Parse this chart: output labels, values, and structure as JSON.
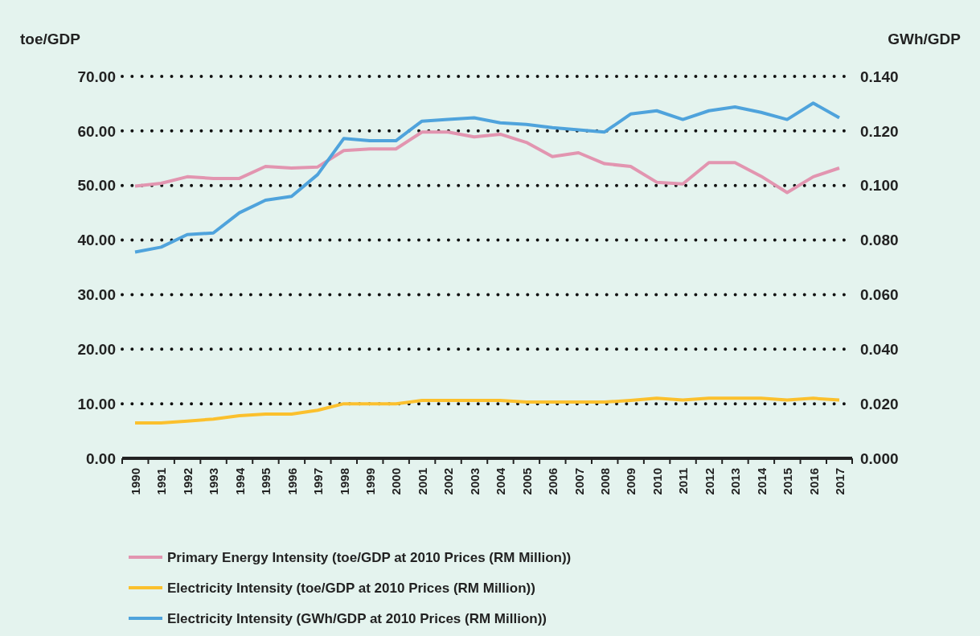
{
  "chart_data": {
    "type": "line",
    "ylabel": "toe/GDP",
    "y2label": "GWh/GDP",
    "categories": [
      "1990",
      "1991",
      "1992",
      "1993",
      "1994",
      "1995",
      "1996",
      "1997",
      "1998",
      "1999",
      "2000",
      "2001",
      "2002",
      "2003",
      "2004",
      "2005",
      "2006",
      "2007",
      "2008",
      "2009",
      "2010",
      "2011",
      "2012",
      "2013",
      "2014",
      "2015",
      "2016",
      "2017"
    ],
    "series": [
      {
        "name": "Primary Energy Intensity (toe/GDP at 2010 Prices (RM Million))",
        "color": "#e295b0",
        "values": [
          49.9,
          50.4,
          51.6,
          51.3,
          51.3,
          53.5,
          53.2,
          53.4,
          56.4,
          56.7,
          56.7,
          59.8,
          59.8,
          58.9,
          59.4,
          57.9,
          55.3,
          56.0,
          54.0,
          53.5,
          50.6,
          50.3,
          54.2,
          54.2,
          51.7,
          48.7,
          51.6,
          53.2
        ]
      },
      {
        "name": "Electricity Intensity (toe/GDP at 2010 Prices (RM Million))",
        "color": "#fbc02d",
        "values": [
          6.5,
          6.5,
          6.8,
          7.2,
          7.8,
          8.1,
          8.1,
          8.8,
          10.0,
          10.0,
          10.0,
          10.6,
          10.6,
          10.6,
          10.6,
          10.3,
          10.3,
          10.3,
          10.3,
          10.6,
          11.0,
          10.7,
          11.0,
          11.0,
          11.0,
          10.7,
          11.0,
          10.7
        ]
      },
      {
        "name": "Electricity Intensity (GWh/GDP at 2010 Prices (RM Million))",
        "color": "#4fa3dc",
        "axis": "y2",
        "values": [
          0.0756,
          0.0774,
          0.082,
          0.0826,
          0.09,
          0.0946,
          0.096,
          0.104,
          0.1172,
          0.1164,
          0.1164,
          0.1236,
          0.1242,
          0.1248,
          0.123,
          0.1224,
          0.1212,
          0.1204,
          0.1196,
          0.1262,
          0.1274,
          0.1242,
          0.1274,
          0.1288,
          0.1268,
          0.1242,
          0.1302,
          0.1248
        ]
      }
    ],
    "ylim": [
      0,
      70
    ],
    "yticks": [
      {
        "value": 0,
        "label": "0.00"
      },
      {
        "value": 10,
        "label": "10.00"
      },
      {
        "value": 20,
        "label": "20.00"
      },
      {
        "value": 30,
        "label": "30.00"
      },
      {
        "value": 40,
        "label": "40.00"
      },
      {
        "value": 50,
        "label": "50.00"
      },
      {
        "value": 60,
        "label": "60.00"
      },
      {
        "value": 70,
        "label": "70.00"
      }
    ],
    "y2lim": [
      0,
      0.14
    ],
    "y2ticks": [
      {
        "value": 0,
        "label": "0.000"
      },
      {
        "value": 0.02,
        "label": "0.020"
      },
      {
        "value": 0.04,
        "label": "0.040"
      },
      {
        "value": 0.06,
        "label": "0.060"
      },
      {
        "value": 0.08,
        "label": "0.080"
      },
      {
        "value": 0.1,
        "label": "0.100"
      },
      {
        "value": 0.12,
        "label": "0.120"
      },
      {
        "value": 0.14,
        "label": "0.140"
      }
    ],
    "grid": "y",
    "legend": "bottom",
    "marker": "none",
    "line_style": "solid"
  }
}
